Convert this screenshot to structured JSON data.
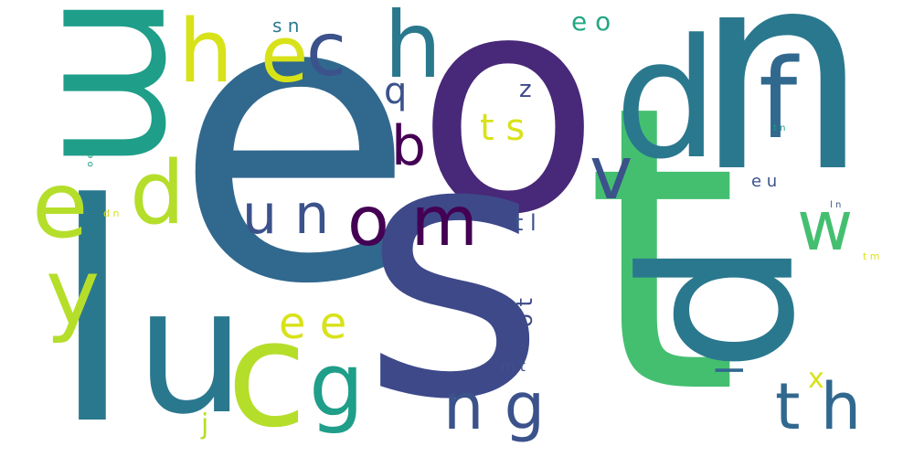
{
  "colors": {
    "teal": "#2a788e",
    "blue": "#31688e",
    "indigo": "#3e4989",
    "purple": "#482878",
    "dark": "#440154",
    "seagreen": "#22a884",
    "green": "#44bf70",
    "lime": "#b5de2b",
    "yellow": "#d8e219",
    "aqua": "#1f9e89",
    "navy": "#3b528b"
  },
  "words": {
    "w01": "e",
    "w02": "o",
    "w03": "n",
    "w04": "s",
    "w05": "t",
    "w06": "p",
    "w07": "m",
    "w08": "l",
    "w09": "d",
    "w10": "u",
    "w11": "c",
    "w12": "f",
    "w13": "h",
    "w14": "e",
    "w15": "c",
    "w16": "h",
    "w17": "e",
    "w18": "d",
    "w19": "y",
    "w20": "g",
    "w21": "v",
    "w22": "w",
    "w23": "o m",
    "w24": "u n",
    "w25": "n g",
    "w26": "t h",
    "w27": "b",
    "w28": "e e",
    "w29": "t s",
    "w30": "q",
    "w31": "z",
    "w32": "e o",
    "w33": "s n",
    "w34": "t l",
    "w35": "o t",
    "w36": "m t",
    "w37": "e u",
    "w38": "j",
    "w39": "x",
    "w40": "l",
    "w41": "t n",
    "w42": "l n",
    "w43": "t m",
    "w44": "d n",
    "w45": "o e"
  }
}
